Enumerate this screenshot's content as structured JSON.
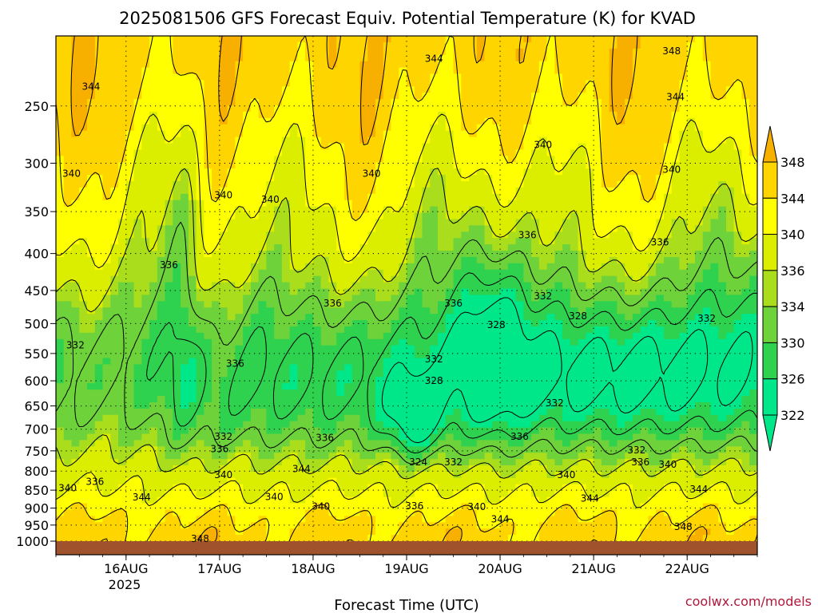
{
  "chart_data": {
    "type": "heatmap",
    "title": "2025081506 GFS Forecast Equiv. Potential Temperature (K) for KVAD",
    "xlabel": "Forecast Time (UTC)",
    "ylabel": "",
    "credit": "coolwx.com/models",
    "x_ticks": [
      "16AUG",
      "17AUG",
      "18AUG",
      "19AUG",
      "20AUG",
      "21AUG",
      "22AUG"
    ],
    "x_tick_year": "2025",
    "x_tick_hours": [
      18,
      42,
      66,
      90,
      114,
      138,
      162
    ],
    "xlim": [
      0,
      180
    ],
    "y_ticks": [
      250,
      300,
      350,
      400,
      450,
      500,
      550,
      600,
      650,
      700,
      750,
      800,
      850,
      900,
      950,
      1000
    ],
    "ylim": [
      1000,
      200
    ],
    "y_scale": "log",
    "grid": true,
    "colorbar": {
      "levels": [
        322,
        326,
        330,
        334,
        336,
        340,
        344,
        348
      ],
      "tick_labels": [
        "322",
        "326",
        "330",
        "334",
        "336",
        "340",
        "344",
        "348"
      ],
      "colors": [
        "#00e78a",
        "#2ed24f",
        "#6ed23a",
        "#aade1c",
        "#dcee00",
        "#ffff00",
        "#ffd500",
        "#f8b000"
      ],
      "placement": "right",
      "extend": "both"
    },
    "ground_color": "#a0522d",
    "contour_levels": [
      324,
      328,
      332,
      336,
      340,
      344,
      348
    ],
    "contour_labels": [
      {
        "text": "344",
        "hour": 97,
        "p": 215
      },
      {
        "text": "348",
        "hour": 158,
        "p": 210
      },
      {
        "text": "344",
        "hour": 9,
        "p": 235
      },
      {
        "text": "344",
        "hour": 159,
        "p": 243
      },
      {
        "text": "340",
        "hour": 125,
        "p": 283
      },
      {
        "text": "340",
        "hour": 4,
        "p": 310
      },
      {
        "text": "340",
        "hour": 81,
        "p": 310
      },
      {
        "text": "340",
        "hour": 158,
        "p": 306
      },
      {
        "text": "340",
        "hour": 43,
        "p": 332
      },
      {
        "text": "340",
        "hour": 55,
        "p": 337
      },
      {
        "text": "336",
        "hour": 121,
        "p": 377
      },
      {
        "text": "336",
        "hour": 155,
        "p": 386
      },
      {
        "text": "336",
        "hour": 29,
        "p": 415
      },
      {
        "text": "336",
        "hour": 71,
        "p": 469
      },
      {
        "text": "336",
        "hour": 102,
        "p": 469
      },
      {
        "text": "332",
        "hour": 125,
        "p": 458
      },
      {
        "text": "328",
        "hour": 134,
        "p": 488
      },
      {
        "text": "332",
        "hour": 167,
        "p": 492
      },
      {
        "text": "328",
        "hour": 113,
        "p": 502
      },
      {
        "text": "332",
        "hour": 5,
        "p": 536
      },
      {
        "text": "332",
        "hour": 97,
        "p": 560
      },
      {
        "text": "336",
        "hour": 46,
        "p": 568
      },
      {
        "text": "328",
        "hour": 97,
        "p": 600
      },
      {
        "text": "332",
        "hour": 128,
        "p": 644
      },
      {
        "text": "332",
        "hour": 43,
        "p": 717
      },
      {
        "text": "336",
        "hour": 69,
        "p": 719
      },
      {
        "text": "336",
        "hour": 119,
        "p": 717
      },
      {
        "text": "336",
        "hour": 42,
        "p": 746
      },
      {
        "text": "332",
        "hour": 149,
        "p": 748
      },
      {
        "text": "324",
        "hour": 93,
        "p": 777
      },
      {
        "text": "332",
        "hour": 102,
        "p": 777
      },
      {
        "text": "336",
        "hour": 150,
        "p": 777
      },
      {
        "text": "340",
        "hour": 157,
        "p": 783
      },
      {
        "text": "344",
        "hour": 63,
        "p": 794
      },
      {
        "text": "340",
        "hour": 43,
        "p": 810
      },
      {
        "text": "340",
        "hour": 131,
        "p": 810
      },
      {
        "text": "336",
        "hour": 10,
        "p": 827
      },
      {
        "text": "340",
        "hour": 3,
        "p": 844
      },
      {
        "text": "344",
        "hour": 22,
        "p": 870
      },
      {
        "text": "340",
        "hour": 56,
        "p": 868
      },
      {
        "text": "344",
        "hour": 137,
        "p": 873
      },
      {
        "text": "344",
        "hour": 165,
        "p": 848
      },
      {
        "text": "336",
        "hour": 92,
        "p": 894
      },
      {
        "text": "340",
        "hour": 68,
        "p": 895
      },
      {
        "text": "340",
        "hour": 108,
        "p": 897
      },
      {
        "text": "344",
        "hour": 114,
        "p": 933
      },
      {
        "text": "348",
        "hour": 161,
        "p": 955
      },
      {
        "text": "348",
        "hour": 37,
        "p": 992
      }
    ]
  }
}
